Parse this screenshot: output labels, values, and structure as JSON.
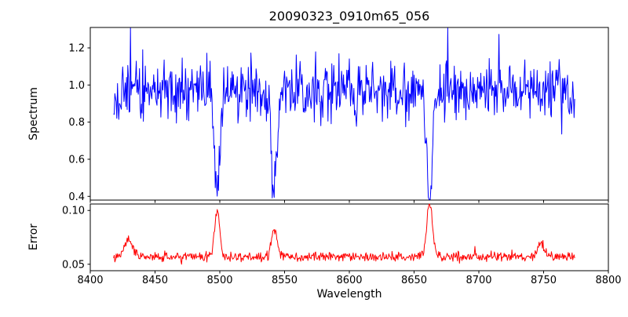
{
  "chart_data": [
    {
      "type": "line",
      "name": "spectrum",
      "title": "20090323_0910m65_056",
      "xlabel": "Wavelength",
      "ylabel": "Spectrum",
      "color": "#0000ff",
      "grid": false,
      "legend": "none",
      "xlim": [
        8400,
        8800
      ],
      "ylim": [
        0.38,
        1.31
      ],
      "xticks": [
        "8400",
        "8450",
        "8500",
        "8550",
        "8600",
        "8650",
        "8700",
        "8750",
        "8800"
      ],
      "yticks": [
        "0.4",
        "0.6",
        "0.8",
        "1.0",
        "1.2"
      ],
      "x_start": 8418,
      "x_end": 8774,
      "x_step": 0.5,
      "baseline": 0.97,
      "noise_std": 0.075,
      "spike_prob": 0.03,
      "spike_scale": 2.2,
      "seed": 13,
      "gauss_features": [
        {
          "center": 8498,
          "amp": -0.54,
          "sigma": 2.0,
          "note": "absorption dip, min ~0.43"
        },
        {
          "center": 8542,
          "amp": -0.55,
          "sigma": 2.0,
          "note": "absorption dip, min ~0.42"
        },
        {
          "center": 8662,
          "amp": -0.57,
          "sigma": 2.2,
          "note": "absorption dip, min ~0.40"
        }
      ],
      "key_points": [
        {
          "x": 8498,
          "y": 0.43
        },
        {
          "x": 8542,
          "y": 0.42
        },
        {
          "x": 8662,
          "y": 0.4
        }
      ]
    },
    {
      "type": "line",
      "name": "error",
      "xlabel": "Wavelength",
      "ylabel": "Error",
      "color": "#ff0000",
      "grid": false,
      "legend": "none",
      "xlim": [
        8400,
        8800
      ],
      "ylim": [
        0.044,
        0.106
      ],
      "xticks": [
        "8400",
        "8450",
        "8500",
        "8550",
        "8600",
        "8650",
        "8700",
        "8750",
        "8800"
      ],
      "yticks": [
        "0.05",
        "0.10"
      ],
      "x_start": 8418,
      "x_end": 8774,
      "x_step": 0.5,
      "baseline": 0.057,
      "noise_std": 0.0022,
      "spike_prob": 0.02,
      "spike_scale": 1.8,
      "seed": 104729,
      "gauss_features": [
        {
          "center": 8430,
          "amp": 0.016,
          "sigma": 3.0,
          "note": "small error bump"
        },
        {
          "center": 8498,
          "amp": 0.042,
          "sigma": 2.0,
          "note": "error peak ~0.10"
        },
        {
          "center": 8542,
          "amp": 0.027,
          "sigma": 2.0,
          "note": "error peak ~0.085"
        },
        {
          "center": 8662,
          "amp": 0.05,
          "sigma": 2.2,
          "note": "error peak ~0.108"
        },
        {
          "center": 8748,
          "amp": 0.012,
          "sigma": 2.5,
          "note": "small error bump"
        }
      ],
      "key_points": [
        {
          "x": 8498,
          "y": 0.1
        },
        {
          "x": 8542,
          "y": 0.085
        },
        {
          "x": 8662,
          "y": 0.108
        }
      ]
    }
  ]
}
